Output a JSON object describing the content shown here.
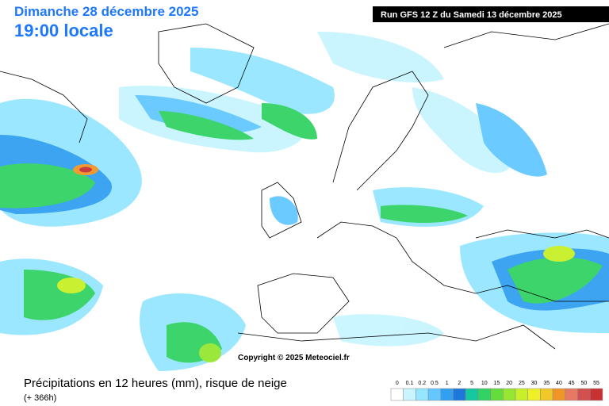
{
  "header": {
    "date": "Dimanche 28 décembre 2025",
    "time": "19:00 locale",
    "run": "Run GFS 12 Z du Samedi 13 décembre 2025"
  },
  "map": {
    "copyright": "Copyright © 2025 Meteociel.fr"
  },
  "footer": {
    "title": "Précipitations en 12 heures (mm), risque de neige",
    "subtitle": "(+ 366h)"
  },
  "legend": {
    "items": [
      {
        "label": "0",
        "color": "#ffffff"
      },
      {
        "label": "0.1",
        "color": "#c8f5ff"
      },
      {
        "label": "0.2",
        "color": "#96e6ff"
      },
      {
        "label": "0.5",
        "color": "#64c8ff"
      },
      {
        "label": "1",
        "color": "#32a0f0"
      },
      {
        "label": "2",
        "color": "#1e78dc"
      },
      {
        "label": "5",
        "color": "#14c8a0"
      },
      {
        "label": "10",
        "color": "#32d264"
      },
      {
        "label": "15",
        "color": "#64dc3c"
      },
      {
        "label": "20",
        "color": "#96e632"
      },
      {
        "label": "25",
        "color": "#c8f028"
      },
      {
        "label": "30",
        "color": "#f0f028"
      },
      {
        "label": "35",
        "color": "#f0c828"
      },
      {
        "label": "40",
        "color": "#f09628"
      },
      {
        "label": "45",
        "color": "#e67864"
      },
      {
        "label": "50",
        "color": "#d25050"
      },
      {
        "label": "55",
        "color": "#c83232"
      }
    ]
  }
}
